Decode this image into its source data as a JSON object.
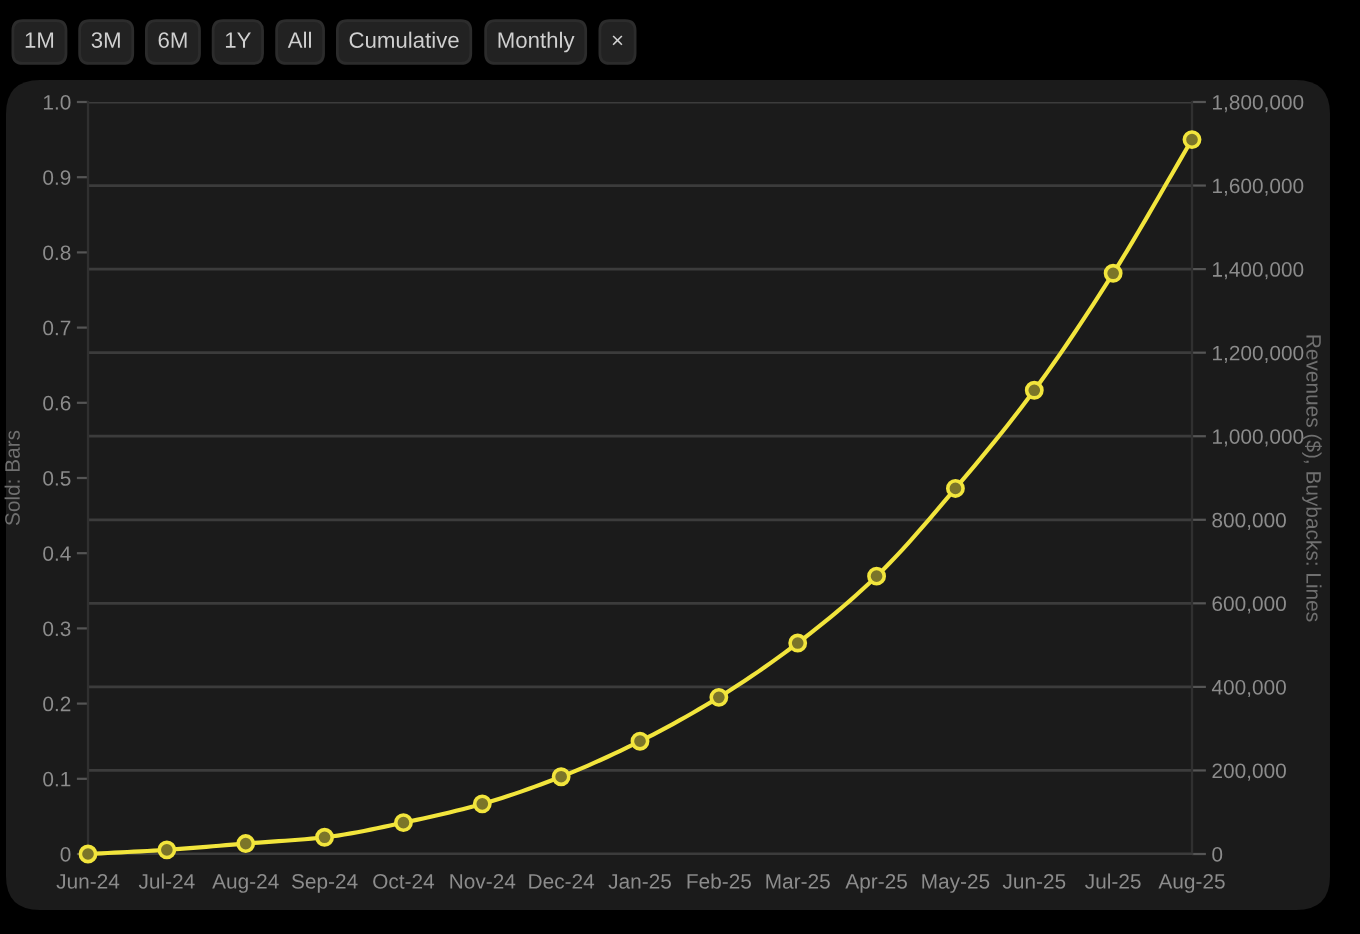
{
  "chart_data": {
    "type": "line",
    "categories": [
      "Jun-24",
      "Jul-24",
      "Aug-24",
      "Sep-24",
      "Oct-24",
      "Nov-24",
      "Dec-24",
      "Jan-25",
      "Feb-25",
      "Mar-25",
      "Apr-25",
      "May-25",
      "Jun-25",
      "Jul-25",
      "Aug-25"
    ],
    "ylabel": "Sold: Bars",
    "y2label": "Revenues ($), Buybacks: Lines",
    "ylim": [
      0,
      1
    ],
    "yticks": [
      0,
      0.1,
      0.2,
      0.3,
      0.4,
      0.5,
      0.6,
      0.7,
      0.8,
      0.9,
      {
        "value": 1,
        "label": "1.0"
      }
    ],
    "y2lim": [
      0,
      1800000
    ],
    "y2ticks": [
      0,
      {
        "value": 200000,
        "label": "200,000"
      },
      {
        "value": 400000,
        "label": "400,000"
      },
      {
        "value": 600000,
        "label": "600,000"
      },
      {
        "value": 800000,
        "label": "800,000"
      },
      {
        "value": 1000000,
        "label": "1,000,000"
      },
      {
        "value": 1200000,
        "label": "1,200,000"
      },
      {
        "value": 1400000,
        "label": "1,400,000"
      },
      {
        "value": 1600000,
        "label": "1,600,000"
      },
      {
        "value": 1800000,
        "label": "1,800,000"
      }
    ],
    "series": [
      {
        "color": "#f2e53c",
        "axis": "y2",
        "values": [
          0,
          10000,
          25000,
          40000,
          75000,
          120000,
          185000,
          270000,
          375000,
          505000,
          665000,
          875000,
          1110000,
          1390000,
          1710000
        ]
      }
    ],
    "marker": "circle",
    "line_style": "solid",
    "grid": "y2",
    "annotations": [
      "1M",
      "3M",
      "6M",
      "1Y",
      "All",
      "Cumulative",
      "Monthly",
      "×"
    ]
  }
}
